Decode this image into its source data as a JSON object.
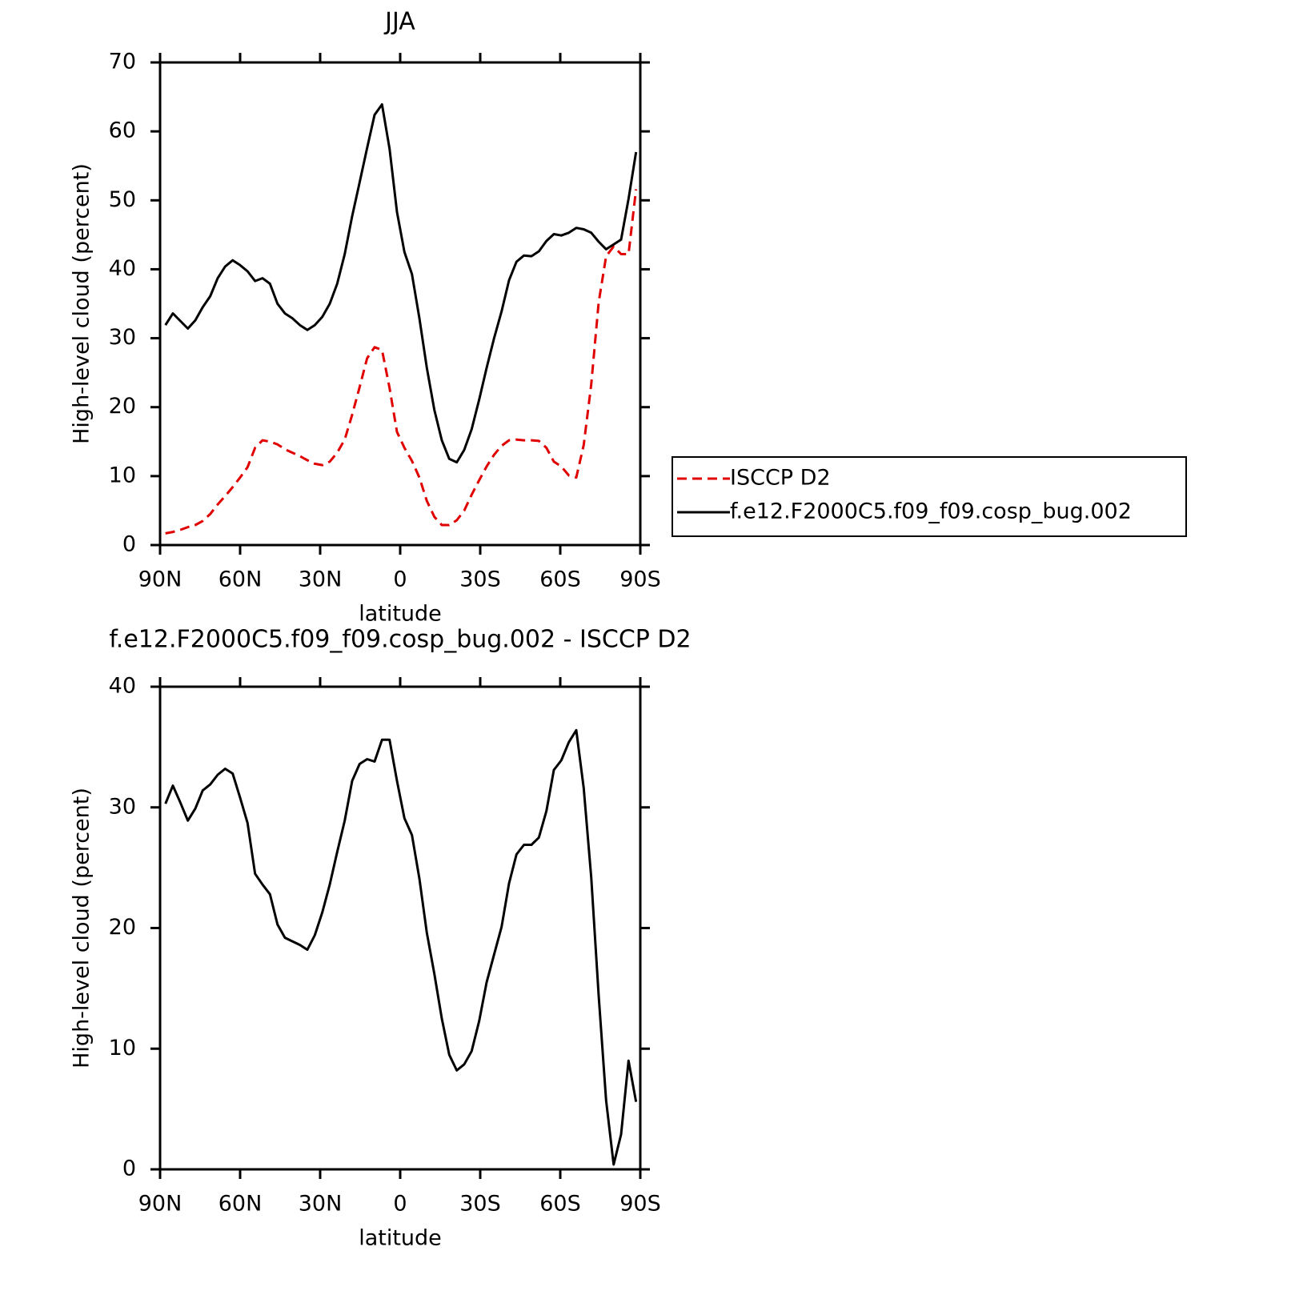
{
  "chart_data": [
    {
      "type": "line",
      "title": "JJA",
      "xlabel": "latitude",
      "ylabel": "High-level cloud (percent)",
      "x": [
        88,
        85.2,
        82.4,
        79.6,
        76.8,
        74,
        71.2,
        68.4,
        65.6,
        62.8,
        60,
        57.2,
        54.4,
        51.6,
        48.8,
        46,
        43.2,
        40.4,
        37.6,
        34.8,
        32,
        29.2,
        26.4,
        23.6,
        20.8,
        18,
        15.2,
        12.4,
        9.6,
        6.8,
        4,
        1.2,
        -1.6,
        -4.4,
        -7.2,
        -10,
        -12.8,
        -15.6,
        -18.4,
        -21.2,
        -24,
        -26.8,
        -29.6,
        -32.4,
        -35.2,
        -38,
        -40.8,
        -43.6,
        -46.4,
        -49.2,
        -52,
        -54.8,
        -57.6,
        -60.4,
        -63.2,
        -66,
        -68.8,
        -71.6,
        -74.4,
        -77.2,
        -80,
        -82.8,
        -85.6,
        -88.4
      ],
      "xlim": [
        90,
        -90
      ],
      "xticks": [
        {
          "value": 90,
          "label": "90N"
        },
        {
          "value": 60,
          "label": "60N"
        },
        {
          "value": 30,
          "label": "30N"
        },
        0,
        {
          "value": -30,
          "label": "30S"
        },
        {
          "value": -60,
          "label": "60S"
        },
        {
          "value": -90,
          "label": "90S"
        }
      ],
      "ylim": [
        0,
        70
      ],
      "yticks": [
        0,
        10,
        20,
        30,
        40,
        50,
        60,
        70
      ],
      "legend": "right",
      "series": [
        {
          "name": "ISCCP D2",
          "color": "#e00000",
          "style": "dashed",
          "values": [
            1.7,
            1.9,
            2.2,
            2.6,
            2.9,
            3.5,
            4.5,
            5.9,
            7.1,
            8.4,
            9.8,
            11.3,
            14.1,
            15.2,
            15.0,
            14.6,
            13.9,
            13.4,
            12.9,
            12.3,
            11.8,
            11.6,
            12.1,
            13.4,
            15.3,
            18.9,
            22.9,
            27.1,
            28.7,
            28.3,
            22.8,
            16.4,
            14.1,
            12.2,
            9.8,
            6.4,
            4.1,
            2.9,
            2.9,
            3.6,
            5.0,
            7.3,
            9.4,
            11.4,
            13.1,
            14.4,
            15.2,
            15.3,
            15.2,
            15.2,
            15.1,
            14.1,
            12.1,
            11.4,
            10.1,
            9.8,
            14.5,
            23.3,
            35.2,
            41.9,
            43.3,
            42.2,
            42.2,
            51.6
          ]
        },
        {
          "name": "f.e12.F2000C5.f09_f09.cosp_bug.002",
          "color": "#000000",
          "style": "solid",
          "values": [
            31.9,
            33.6,
            32.5,
            31.4,
            32.6,
            34.5,
            36.1,
            38.7,
            40.4,
            41.3,
            40.6,
            39.7,
            38.3,
            38.7,
            37.9,
            35.0,
            33.6,
            32.9,
            31.9,
            31.2,
            31.9,
            33.1,
            35.0,
            37.9,
            42.2,
            47.7,
            52.6,
            57.6,
            62.4,
            63.9,
            57.5,
            48.3,
            42.5,
            39.3,
            32.9,
            25.7,
            19.6,
            15.2,
            12.5,
            12.0,
            13.8,
            16.8,
            21.1,
            25.7,
            30.0,
            33.9,
            38.4,
            41.1,
            42.0,
            41.9,
            42.6,
            44.1,
            45.1,
            44.9,
            45.3,
            46.0,
            45.8,
            45.3,
            44.0,
            42.9,
            43.6,
            44.3,
            50.2,
            57.0
          ]
        }
      ]
    },
    {
      "type": "line",
      "title": "f.e12.F2000C5.f09_f09.cosp_bug.002 - ISCCP D2",
      "xlabel": "latitude",
      "ylabel": "High-level cloud (percent)",
      "x": [
        88,
        85.2,
        82.4,
        79.6,
        76.8,
        74,
        71.2,
        68.4,
        65.6,
        62.8,
        60,
        57.2,
        54.4,
        51.6,
        48.8,
        46,
        43.2,
        40.4,
        37.6,
        34.8,
        32,
        29.2,
        26.4,
        23.6,
        20.8,
        18,
        15.2,
        12.4,
        9.6,
        6.8,
        4,
        1.2,
        -1.6,
        -4.4,
        -7.2,
        -10,
        -12.8,
        -15.6,
        -18.4,
        -21.2,
        -24,
        -26.8,
        -29.6,
        -32.4,
        -35.2,
        -38,
        -40.8,
        -43.6,
        -46.4,
        -49.2,
        -52,
        -54.8,
        -57.6,
        -60.4,
        -63.2,
        -66,
        -68.8,
        -71.6,
        -74.4,
        -77.2,
        -80,
        -82.8,
        -85.6,
        -88.4
      ],
      "xlim": [
        90,
        -90
      ],
      "xticks": [
        {
          "value": 90,
          "label": "90N"
        },
        {
          "value": 60,
          "label": "60N"
        },
        {
          "value": 30,
          "label": "30N"
        },
        0,
        {
          "value": -30,
          "label": "30S"
        },
        {
          "value": -60,
          "label": "60S"
        },
        {
          "value": -90,
          "label": "90S"
        }
      ],
      "ylim": [
        0,
        40
      ],
      "yticks": [
        0,
        10,
        20,
        30,
        40
      ],
      "color": "#000000",
      "values": [
        30.3,
        31.8,
        30.4,
        28.9,
        29.9,
        31.4,
        31.9,
        32.7,
        33.2,
        32.8,
        30.8,
        28.7,
        24.5,
        23.6,
        22.8,
        20.3,
        19.2,
        18.9,
        18.6,
        18.2,
        19.4,
        21.3,
        23.6,
        26.3,
        28.9,
        32.2,
        33.6,
        34.0,
        33.8,
        35.6,
        35.6,
        32.2,
        29.1,
        27.7,
        24.1,
        19.6,
        16.2,
        12.5,
        9.5,
        8.2,
        8.7,
        9.8,
        12.3,
        15.5,
        17.8,
        20.1,
        23.7,
        26.1,
        26.9,
        26.9,
        27.5,
        29.7,
        33.1,
        33.9,
        35.4,
        36.4,
        31.6,
        24.2,
        14.4,
        5.7,
        0.4,
        2.9,
        9.0,
        5.6
      ]
    }
  ]
}
